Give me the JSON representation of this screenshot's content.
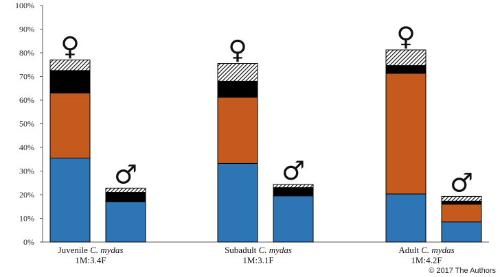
{
  "colors": {
    "blue": "#2e75b6",
    "orange": "#c55a1e",
    "black": "#000000",
    "hatch": "#000000"
  },
  "credit": "© 2017 The Authors",
  "chart_data": {
    "type": "bar",
    "stacked": true,
    "ylim": [
      0,
      100
    ],
    "yticks": [
      "0%",
      "10%",
      "20%",
      "30%",
      "40%",
      "50%",
      "60%",
      "70%",
      "80%",
      "90%",
      "100%"
    ],
    "segment_order": [
      "blue",
      "orange",
      "black",
      "hatched"
    ],
    "groups": [
      {
        "label_prefix": "Juvenile",
        "label_italic": "C. mydas",
        "ratio": "1M:3.4F",
        "bars": [
          {
            "sex": "female",
            "symbol": "♀",
            "segments": [
              35.5,
              27.5,
              9.5,
              4.5
            ]
          },
          {
            "sex": "male",
            "symbol": "♂",
            "segments": [
              17,
              0,
              4,
              1.8
            ]
          }
        ]
      },
      {
        "label_prefix": "Subadult",
        "label_italic": "C. mydas",
        "ratio": "1M:3.1F",
        "bars": [
          {
            "sex": "female",
            "symbol": "♀",
            "segments": [
              33.2,
              28,
              6.8,
              7.5
            ]
          },
          {
            "sex": "male",
            "symbol": "♂",
            "segments": [
              19.5,
              0,
              3.5,
              1.3
            ]
          }
        ]
      },
      {
        "label_prefix": "Adult",
        "label_italic": "C. mydas",
        "ratio": "1M:4.2F",
        "bars": [
          {
            "sex": "female",
            "symbol": "♀",
            "segments": [
              20.3,
              51,
              3.3,
              6.6
            ]
          },
          {
            "sex": "male",
            "symbol": "♂",
            "segments": [
              8.5,
              7.5,
              1.3,
              2
            ]
          }
        ]
      }
    ]
  }
}
